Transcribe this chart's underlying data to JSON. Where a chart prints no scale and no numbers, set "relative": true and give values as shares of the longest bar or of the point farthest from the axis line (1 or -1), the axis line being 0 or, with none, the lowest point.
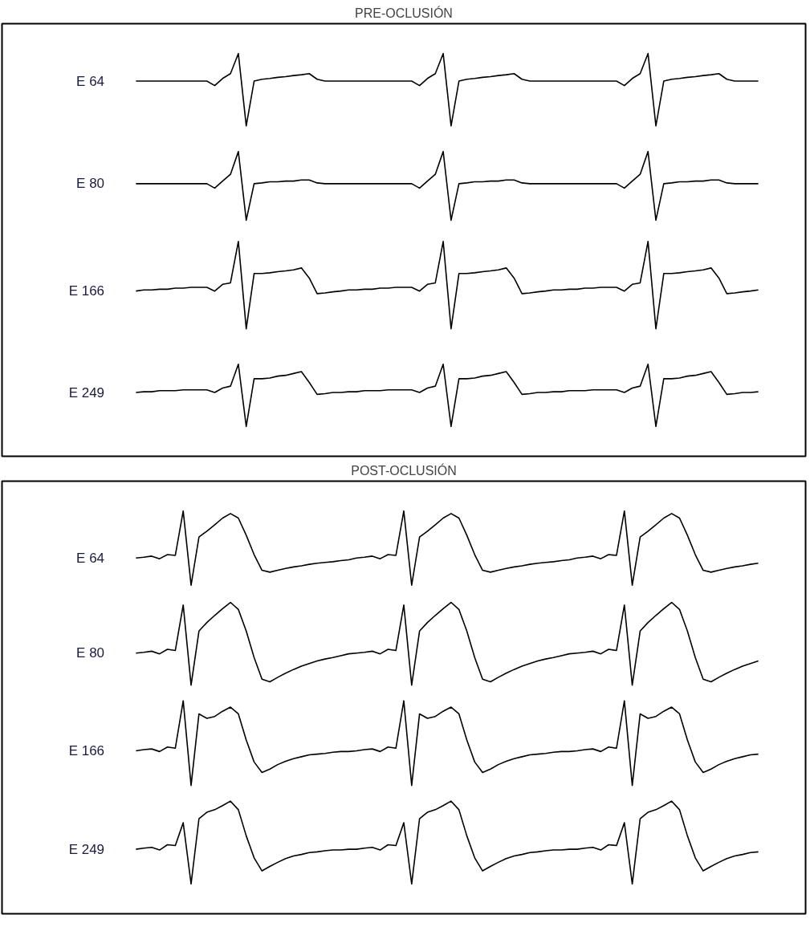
{
  "chart_data": [
    {
      "type": "line",
      "title": "PRE-OCLUSIÓN",
      "relative": true,
      "categories": [
        null,
        null,
        null,
        null,
        null,
        null,
        null,
        null,
        null,
        null,
        null,
        null,
        null,
        null,
        null,
        null,
        null,
        null,
        null,
        null,
        null,
        null,
        null,
        null,
        null,
        null,
        null,
        null,
        null,
        null,
        null,
        null,
        null,
        null,
        null,
        null,
        null,
        null,
        null,
        null,
        null,
        null,
        null,
        null,
        null,
        null,
        null,
        null,
        null,
        null,
        null,
        null,
        null,
        null,
        null,
        null,
        null,
        null,
        null,
        null,
        null,
        null,
        null,
        null,
        null,
        null,
        null,
        null,
        null,
        null,
        null,
        null,
        null,
        null,
        null,
        null,
        null,
        null,
        null,
        null
      ],
      "series": [
        {
          "name": "E 64",
          "color": "#000000",
          "values": [
            0.926,
            0.926,
            0.926,
            0.926,
            0.926,
            0.926,
            0.926,
            0.926,
            0.926,
            0.926,
            0.914,
            0.933,
            0.946,
            1.0,
            0.806,
            0.926,
            0.931,
            0.933,
            0.936,
            0.938,
            0.941,
            0.943,
            0.946,
            0.931,
            0.926,
            0.926,
            0.926,
            0.926,
            0.926,
            0.926,
            0.926,
            0.926,
            0.926,
            0.926,
            0.926,
            0.926,
            0.914,
            0.933,
            0.946,
            1.0,
            0.806,
            0.926,
            0.931,
            0.933,
            0.936,
            0.938,
            0.941,
            0.943,
            0.946,
            0.931,
            0.926,
            0.926,
            0.926,
            0.926,
            0.926,
            0.926,
            0.926,
            0.926,
            0.926,
            0.926,
            0.926,
            0.926,
            0.914,
            0.933,
            0.946,
            1.0,
            0.806,
            0.926,
            0.931,
            0.933,
            0.936,
            0.938,
            0.941,
            0.943,
            0.946,
            0.931,
            0.926,
            0.926,
            0.926,
            0.926
          ]
        },
        {
          "name": "E 80",
          "color": "#000000",
          "values": [
            0.651,
            0.651,
            0.651,
            0.651,
            0.651,
            0.651,
            0.651,
            0.651,
            0.651,
            0.651,
            0.639,
            0.658,
            0.676,
            0.737,
            0.553,
            0.651,
            0.653,
            0.656,
            0.656,
            0.658,
            0.658,
            0.661,
            0.661,
            0.653,
            0.651,
            0.651,
            0.651,
            0.651,
            0.651,
            0.651,
            0.651,
            0.651,
            0.651,
            0.651,
            0.651,
            0.651,
            0.639,
            0.658,
            0.676,
            0.737,
            0.553,
            0.651,
            0.653,
            0.656,
            0.656,
            0.658,
            0.658,
            0.661,
            0.661,
            0.653,
            0.651,
            0.651,
            0.651,
            0.651,
            0.651,
            0.651,
            0.651,
            0.651,
            0.651,
            0.651,
            0.651,
            0.651,
            0.639,
            0.658,
            0.676,
            0.737,
            0.553,
            0.651,
            0.653,
            0.656,
            0.656,
            0.658,
            0.658,
            0.661,
            0.661,
            0.653,
            0.651,
            0.651,
            0.651,
            0.651
          ]
        },
        {
          "name": "E 166",
          "color": "#000000",
          "values": [
            0.363,
            0.366,
            0.366,
            0.368,
            0.368,
            0.371,
            0.371,
            0.373,
            0.373,
            0.373,
            0.363,
            0.381,
            0.385,
            0.496,
            0.262,
            0.41,
            0.41,
            0.412,
            0.415,
            0.417,
            0.42,
            0.425,
            0.398,
            0.356,
            0.358,
            0.361,
            0.363,
            0.366,
            0.366,
            0.368,
            0.368,
            0.371,
            0.371,
            0.373,
            0.373,
            0.373,
            0.363,
            0.381,
            0.385,
            0.496,
            0.262,
            0.41,
            0.41,
            0.412,
            0.415,
            0.417,
            0.42,
            0.425,
            0.398,
            0.356,
            0.358,
            0.361,
            0.363,
            0.366,
            0.366,
            0.368,
            0.368,
            0.371,
            0.371,
            0.373,
            0.373,
            0.373,
            0.363,
            0.381,
            0.385,
            0.496,
            0.262,
            0.41,
            0.41,
            0.412,
            0.415,
            0.417,
            0.42,
            0.425,
            0.398,
            0.356,
            0.358,
            0.361,
            0.363,
            0.366
          ]
        },
        {
          "name": "E 249",
          "color": "#000000",
          "values": [
            0.091,
            0.093,
            0.093,
            0.096,
            0.096,
            0.096,
            0.098,
            0.098,
            0.098,
            0.098,
            0.091,
            0.103,
            0.108,
            0.167,
            0.0,
            0.128,
            0.128,
            0.13,
            0.135,
            0.137,
            0.142,
            0.147,
            0.118,
            0.086,
            0.088,
            0.091,
            0.091,
            0.093,
            0.093,
            0.096,
            0.096,
            0.096,
            0.098,
            0.098,
            0.098,
            0.098,
            0.091,
            0.103,
            0.108,
            0.167,
            0.0,
            0.128,
            0.128,
            0.13,
            0.135,
            0.137,
            0.142,
            0.147,
            0.118,
            0.086,
            0.088,
            0.091,
            0.091,
            0.093,
            0.093,
            0.096,
            0.096,
            0.096,
            0.098,
            0.098,
            0.098,
            0.098,
            0.091,
            0.103,
            0.108,
            0.167,
            0.0,
            0.128,
            0.128,
            0.13,
            0.135,
            0.137,
            0.142,
            0.147,
            0.118,
            0.086,
            0.088,
            0.091,
            0.091,
            0.093
          ]
        }
      ]
    },
    {
      "type": "line",
      "title": "POST-OCLUSIÓN",
      "relative": true,
      "categories": [
        null,
        null,
        null,
        null,
        null,
        null,
        null,
        null,
        null,
        null,
        null,
        null,
        null,
        null,
        null,
        null,
        null,
        null,
        null,
        null,
        null,
        null,
        null,
        null,
        null,
        null,
        null,
        null,
        null,
        null,
        null,
        null,
        null,
        null,
        null,
        null,
        null,
        null,
        null,
        null,
        null,
        null,
        null,
        null,
        null,
        null,
        null,
        null,
        null,
        null,
        null,
        null,
        null,
        null,
        null,
        null,
        null,
        null,
        null,
        null,
        null,
        null,
        null,
        null,
        null,
        null,
        null,
        null,
        null,
        null,
        null,
        null,
        null,
        null,
        null,
        null,
        null,
        null,
        null,
        null
      ],
      "series": [
        {
          "name": "E 64",
          "color": "#000000",
          "values": [
            0.874,
            0.876,
            0.879,
            0.872,
            0.883,
            0.881,
            1.0,
            0.801,
            0.93,
            0.946,
            0.963,
            0.981,
            0.993,
            0.981,
            0.935,
            0.883,
            0.841,
            0.836,
            0.841,
            0.846,
            0.85,
            0.853,
            0.857,
            0.86,
            0.862,
            0.864,
            0.867,
            0.869,
            0.874,
            0.876,
            0.879,
            0.872,
            0.883,
            0.881,
            1.0,
            0.801,
            0.93,
            0.946,
            0.963,
            0.981,
            0.993,
            0.981,
            0.935,
            0.883,
            0.841,
            0.836,
            0.841,
            0.846,
            0.85,
            0.853,
            0.857,
            0.86,
            0.862,
            0.864,
            0.867,
            0.869,
            0.874,
            0.876,
            0.879,
            0.872,
            0.883,
            0.881,
            1.0,
            0.801,
            0.93,
            0.946,
            0.963,
            0.981,
            0.993,
            0.981,
            0.935,
            0.883,
            0.841,
            0.836,
            0.841,
            0.846,
            0.85,
            0.853,
            0.857,
            0.86
          ]
        },
        {
          "name": "E 80",
          "color": "#000000",
          "values": [
            0.619,
            0.621,
            0.624,
            0.617,
            0.629,
            0.626,
            0.748,
            0.533,
            0.678,
            0.701,
            0.72,
            0.738,
            0.755,
            0.736,
            0.678,
            0.607,
            0.549,
            0.542,
            0.554,
            0.565,
            0.575,
            0.584,
            0.591,
            0.598,
            0.603,
            0.607,
            0.612,
            0.617,
            0.619,
            0.621,
            0.624,
            0.617,
            0.629,
            0.626,
            0.748,
            0.533,
            0.678,
            0.701,
            0.72,
            0.738,
            0.755,
            0.736,
            0.678,
            0.607,
            0.549,
            0.542,
            0.554,
            0.565,
            0.575,
            0.584,
            0.591,
            0.598,
            0.603,
            0.607,
            0.612,
            0.617,
            0.619,
            0.621,
            0.624,
            0.617,
            0.629,
            0.626,
            0.748,
            0.533,
            0.678,
            0.701,
            0.72,
            0.738,
            0.755,
            0.736,
            0.678,
            0.607,
            0.549,
            0.542,
            0.554,
            0.565,
            0.575,
            0.584,
            0.591,
            0.598
          ]
        },
        {
          "name": "E 166",
          "color": "#000000",
          "values": [
            0.357,
            0.36,
            0.362,
            0.355,
            0.367,
            0.364,
            0.491,
            0.264,
            0.456,
            0.444,
            0.449,
            0.463,
            0.474,
            0.456,
            0.386,
            0.327,
            0.299,
            0.308,
            0.32,
            0.329,
            0.336,
            0.341,
            0.346,
            0.348,
            0.35,
            0.353,
            0.355,
            0.355,
            0.357,
            0.36,
            0.362,
            0.355,
            0.367,
            0.364,
            0.491,
            0.264,
            0.456,
            0.444,
            0.449,
            0.463,
            0.474,
            0.456,
            0.386,
            0.327,
            0.299,
            0.308,
            0.32,
            0.329,
            0.336,
            0.341,
            0.346,
            0.348,
            0.35,
            0.353,
            0.355,
            0.355,
            0.357,
            0.36,
            0.362,
            0.355,
            0.367,
            0.364,
            0.491,
            0.264,
            0.456,
            0.444,
            0.449,
            0.463,
            0.474,
            0.456,
            0.386,
            0.327,
            0.299,
            0.308,
            0.32,
            0.329,
            0.336,
            0.341,
            0.346,
            0.348
          ]
        },
        {
          "name": "E 249",
          "color": "#000000",
          "values": [
            0.093,
            0.096,
            0.098,
            0.091,
            0.105,
            0.103,
            0.164,
            0.0,
            0.175,
            0.192,
            0.199,
            0.21,
            0.222,
            0.199,
            0.129,
            0.07,
            0.035,
            0.047,
            0.058,
            0.068,
            0.075,
            0.079,
            0.084,
            0.086,
            0.089,
            0.091,
            0.091,
            0.093,
            0.093,
            0.096,
            0.098,
            0.091,
            0.105,
            0.103,
            0.164,
            0.0,
            0.175,
            0.192,
            0.199,
            0.21,
            0.222,
            0.199,
            0.129,
            0.07,
            0.035,
            0.047,
            0.058,
            0.068,
            0.075,
            0.079,
            0.084,
            0.086,
            0.089,
            0.091,
            0.091,
            0.093,
            0.093,
            0.096,
            0.098,
            0.091,
            0.105,
            0.103,
            0.164,
            0.0,
            0.175,
            0.192,
            0.199,
            0.21,
            0.222,
            0.199,
            0.129,
            0.07,
            0.035,
            0.047,
            0.058,
            0.068,
            0.075,
            0.079,
            0.084,
            0.086
          ]
        }
      ]
    }
  ]
}
